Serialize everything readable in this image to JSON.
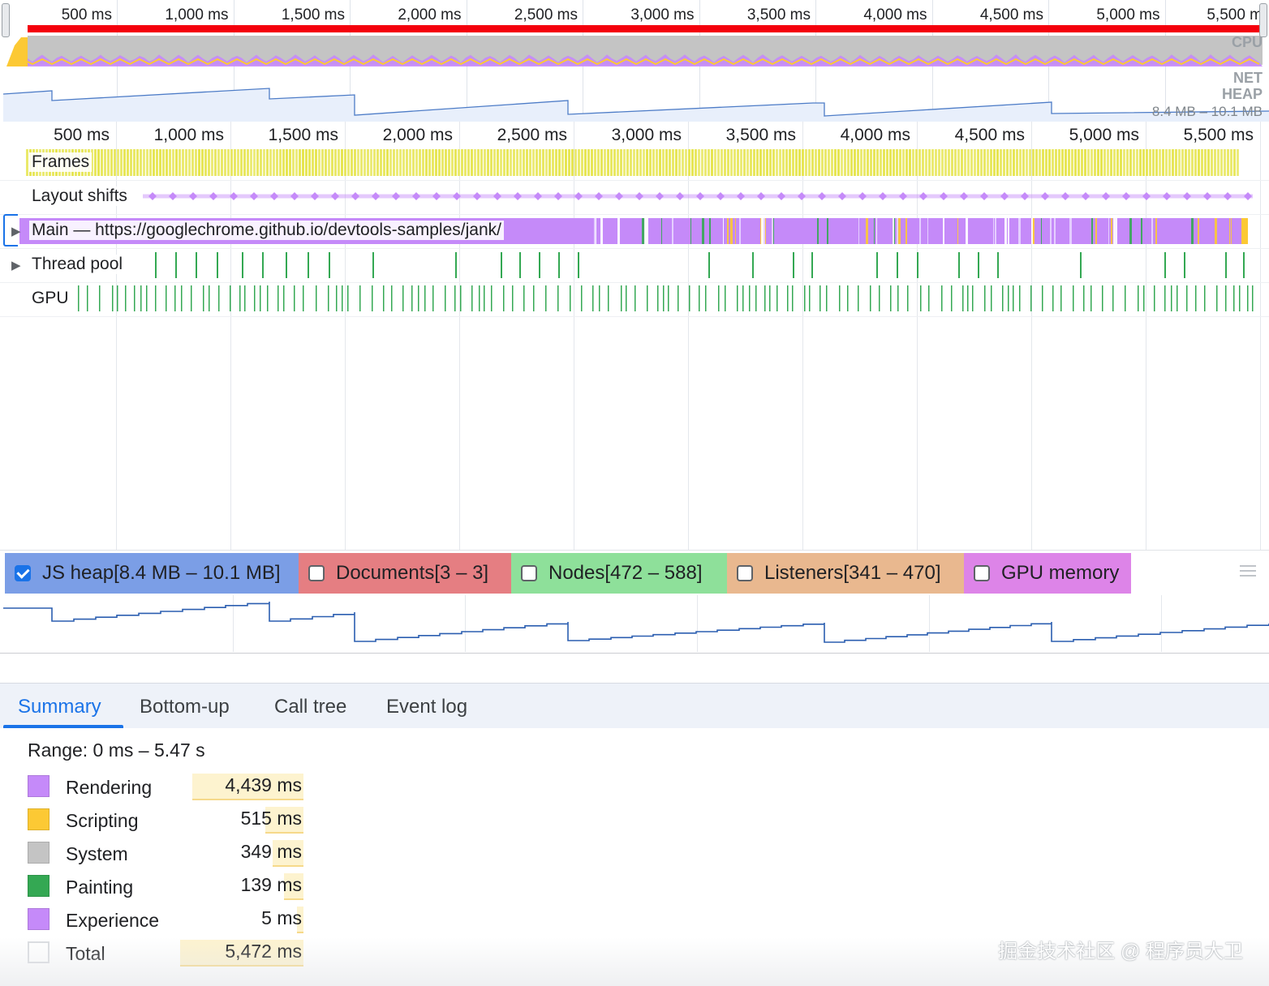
{
  "overview": {
    "ticks": [
      "500 ms",
      "1,000 ms",
      "1,500 ms",
      "2,000 ms",
      "2,500 ms",
      "3,000 ms",
      "3,500 ms",
      "4,000 ms",
      "4,500 ms",
      "5,000 ms",
      "5,500 m"
    ],
    "cpu_label": "CPU",
    "net_label": "NET",
    "heap_label": "HEAP",
    "heap_range": "8.4 MB – 10.1 MB",
    "colors": {
      "long_task": "#f4000c",
      "system": "#c4c4c4",
      "rendering": "#c58af9",
      "scripting": "#fcc934",
      "heap_fill": "#e8effb",
      "heap_line": "#4d7cc7"
    }
  },
  "timeline": {
    "ticks": [
      "500 ms",
      "1,000 ms",
      "1,500 ms",
      "2,000 ms",
      "2,500 ms",
      "3,000 ms",
      "3,500 ms",
      "4,000 ms",
      "4,500 ms",
      "5,000 ms",
      "5,500 ms"
    ],
    "tracks": {
      "frames": "Frames",
      "layout_shifts": "Layout shifts",
      "main": "Main — https://googlechrome.github.io/devtools-samples/jank/",
      "thread_pool": "Thread pool",
      "gpu": "GPU"
    },
    "colors": {
      "frame": "#e6e550",
      "main": "#c58af9",
      "paint": "#34a853",
      "shift": "#c58af9"
    }
  },
  "counters": {
    "items": [
      {
        "label": "JS heap[8.4 MB – 10.1 MB]",
        "checked": true,
        "color": "#7b9ee6"
      },
      {
        "label": "Documents[3 – 3]",
        "checked": false,
        "color": "#e57e82"
      },
      {
        "label": "Nodes[472 – 588]",
        "checked": false,
        "color": "#8ee09a"
      },
      {
        "label": "Listeners[341 – 470]",
        "checked": false,
        "color": "#e9b88f"
      },
      {
        "label": "GPU memory",
        "checked": false,
        "color": "#dd84e8"
      }
    ],
    "heap_line_color": "#2b5eb0"
  },
  "tabs": [
    "Summary",
    "Bottom-up",
    "Call tree",
    "Event log"
  ],
  "active_tab": "Summary",
  "summary": {
    "range": "Range: 0 ms – 5.47 s",
    "rows": [
      {
        "name": "Rendering",
        "value": "4,439 ms",
        "color": "#c58af9",
        "ms": 4439
      },
      {
        "name": "Scripting",
        "value": "515 ms",
        "color": "#fcc934",
        "ms": 515
      },
      {
        "name": "System",
        "value": "349 ms",
        "color": "#c4c4c4",
        "ms": 349
      },
      {
        "name": "Painting",
        "value": "139 ms",
        "color": "#34a853",
        "ms": 139
      },
      {
        "name": "Experience",
        "value": "5 ms",
        "color": "#c58af9",
        "ms": 5
      },
      {
        "name": "Total",
        "value": "5,472 ms",
        "color": "#ffffff",
        "ms": 5472
      }
    ]
  },
  "watermark": "掘金技术社区 @ 程序员大卫"
}
